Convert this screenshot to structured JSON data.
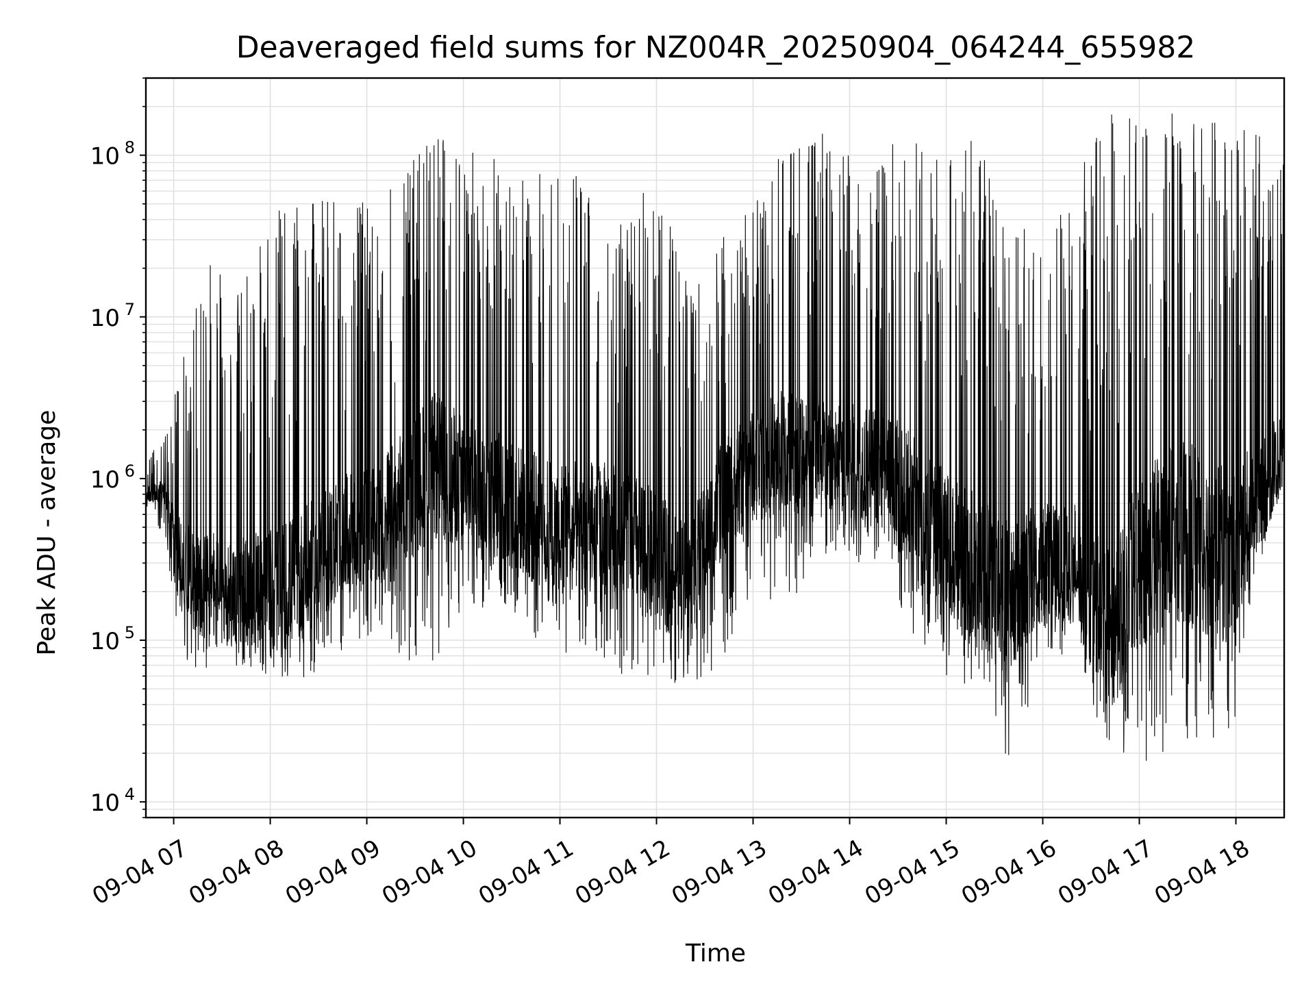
{
  "chart_data": {
    "type": "line",
    "title": "Deaveraged field sums for NZ004R_20250904_064244_655982",
    "xlabel": "Time",
    "ylabel": "Peak ADU - average",
    "yscale": "log",
    "ylim": [
      8000,
      300000000
    ],
    "xlim": [
      "09-04 06:42:44",
      "09-04 18:30"
    ],
    "grid": true,
    "line_color": "#000000",
    "grid_color": "#e0e0e0",
    "x_ticks": [
      {
        "label": "09-04 07",
        "value": "09-04 07:00"
      },
      {
        "label": "09-04 08",
        "value": "09-04 08:00"
      },
      {
        "label": "09-04 09",
        "value": "09-04 09:00"
      },
      {
        "label": "09-04 10",
        "value": "09-04 10:00"
      },
      {
        "label": "09-04 11",
        "value": "09-04 11:00"
      },
      {
        "label": "09-04 12",
        "value": "09-04 12:00"
      },
      {
        "label": "09-04 13",
        "value": "09-04 13:00"
      },
      {
        "label": "09-04 14",
        "value": "09-04 14:00"
      },
      {
        "label": "09-04 15",
        "value": "09-04 15:00"
      },
      {
        "label": "09-04 16",
        "value": "09-04 16:00"
      },
      {
        "label": "09-04 17",
        "value": "09-04 17:00"
      },
      {
        "label": "09-04 18",
        "value": "09-04 18:00"
      }
    ],
    "y_ticks": [
      {
        "base": "10",
        "exp": "4",
        "value": 10000
      },
      {
        "base": "10",
        "exp": "5",
        "value": 100000
      },
      {
        "base": "10",
        "exp": "6",
        "value": 1000000
      },
      {
        "base": "10",
        "exp": "7",
        "value": 10000000
      },
      {
        "base": "10",
        "exp": "8",
        "value": 100000000
      }
    ],
    "envelope": [
      {
        "t": "09-04 06:43",
        "low": 600000,
        "typ": 800000,
        "high": 1300000
      },
      {
        "t": "09-04 06:55",
        "low": 400000,
        "typ": 800000,
        "high": 1900000
      },
      {
        "t": "09-04 07:05",
        "low": 80000,
        "typ": 300000,
        "high": 5000000
      },
      {
        "t": "09-04 07:20",
        "low": 60000,
        "typ": 200000,
        "high": 30000000
      },
      {
        "t": "09-04 07:40",
        "low": 70000,
        "typ": 200000,
        "high": 14000000
      },
      {
        "t": "09-04 08:00",
        "low": 60000,
        "typ": 200000,
        "high": 45000000
      },
      {
        "t": "09-04 08:20",
        "low": 55000,
        "typ": 250000,
        "high": 48000000
      },
      {
        "t": "09-04 08:40",
        "low": 80000,
        "typ": 400000,
        "high": 60000000
      },
      {
        "t": "09-04 09:00",
        "low": 100000,
        "typ": 500000,
        "high": 50000000
      },
      {
        "t": "09-04 09:20",
        "low": 80000,
        "typ": 700000,
        "high": 80000000
      },
      {
        "t": "09-04 09:40",
        "low": 60000,
        "typ": 1200000,
        "high": 140000000
      },
      {
        "t": "09-04 10:00",
        "low": 150000,
        "typ": 1000000,
        "high": 110000000
      },
      {
        "t": "09-04 10:20",
        "low": 150000,
        "typ": 800000,
        "high": 110000000
      },
      {
        "t": "09-04 10:40",
        "low": 100000,
        "typ": 600000,
        "high": 80000000
      },
      {
        "t": "09-04 11:00",
        "low": 80000,
        "typ": 500000,
        "high": 90000000
      },
      {
        "t": "09-04 11:20",
        "low": 80000,
        "typ": 500000,
        "high": 70000000
      },
      {
        "t": "09-04 11:40",
        "low": 60000,
        "typ": 500000,
        "high": 40000000
      },
      {
        "t": "09-04 12:00",
        "low": 60000,
        "typ": 300000,
        "high": 80000000
      },
      {
        "t": "09-04 12:20",
        "low": 50000,
        "typ": 250000,
        "high": 15000000
      },
      {
        "t": "09-04 12:40",
        "low": 70000,
        "typ": 700000,
        "high": 30000000
      },
      {
        "t": "09-04 13:00",
        "low": 200000,
        "typ": 1200000,
        "high": 60000000
      },
      {
        "t": "09-04 13:20",
        "low": 150000,
        "typ": 1500000,
        "high": 110000000
      },
      {
        "t": "09-04 13:40",
        "low": 300000,
        "typ": 1500000,
        "high": 160000000
      },
      {
        "t": "09-04 14:00",
        "low": 300000,
        "typ": 1300000,
        "high": 100000000
      },
      {
        "t": "09-04 14:20",
        "low": 300000,
        "typ": 1200000,
        "high": 120000000
      },
      {
        "t": "09-04 14:40",
        "low": 100000,
        "typ": 700000,
        "high": 140000000
      },
      {
        "t": "09-04 15:00",
        "low": 60000,
        "typ": 400000,
        "high": 90000000
      },
      {
        "t": "09-04 15:20",
        "low": 40000,
        "typ": 250000,
        "high": 180000000
      },
      {
        "t": "09-04 15:40",
        "low": 17000,
        "typ": 200000,
        "high": 50000000
      },
      {
        "t": "09-04 16:00",
        "low": 60000,
        "typ": 300000,
        "high": 25000000
      },
      {
        "t": "09-04 16:20",
        "low": 100000,
        "typ": 300000,
        "high": 70000000
      },
      {
        "t": "09-04 16:40",
        "low": 20000,
        "typ": 100000,
        "high": 180000000
      },
      {
        "t": "09-04 17:00",
        "low": 18000,
        "typ": 300000,
        "high": 190000000
      },
      {
        "t": "09-04 17:20",
        "low": 15000,
        "typ": 500000,
        "high": 190000000
      },
      {
        "t": "09-04 17:40",
        "low": 15000,
        "typ": 400000,
        "high": 190000000
      },
      {
        "t": "09-04 18:00",
        "low": 25000,
        "typ": 300000,
        "high": 190000000
      },
      {
        "t": "09-04 18:10",
        "low": 200000,
        "typ": 700000,
        "high": 150000000
      },
      {
        "t": "09-04 18:30",
        "low": 1000000,
        "typ": 1500000,
        "high": 90000000
      }
    ]
  }
}
